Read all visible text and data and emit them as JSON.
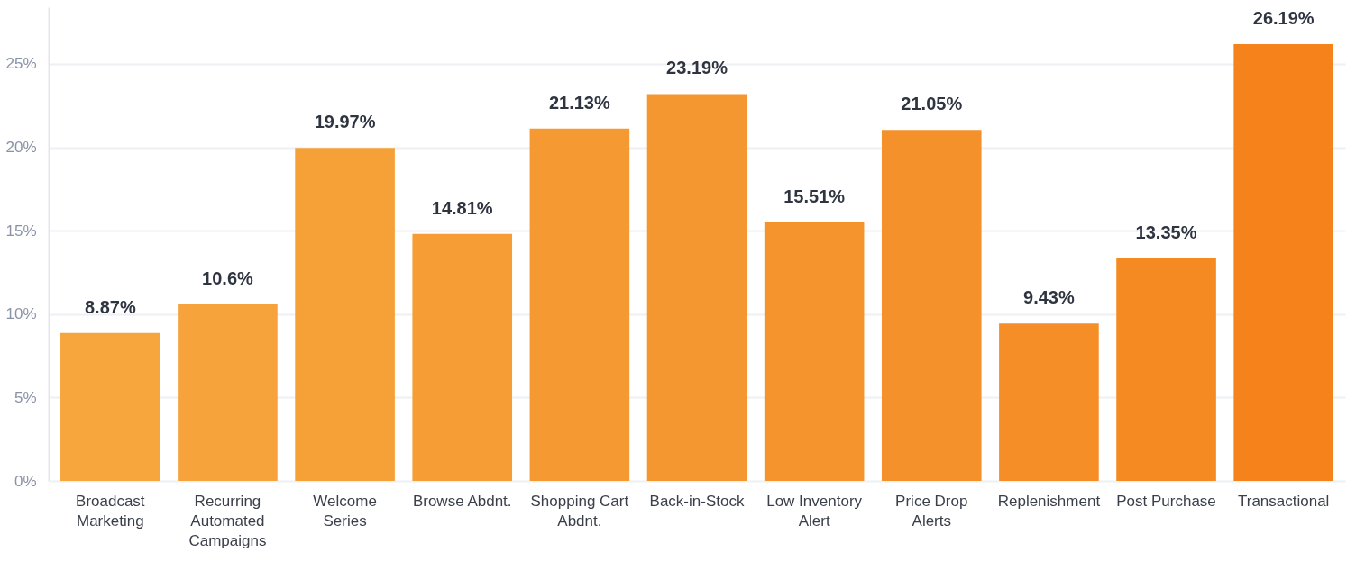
{
  "chart_data": {
    "type": "bar",
    "categories": [
      "Broadcast Marketing",
      "Recurring Automated Campaigns",
      "Welcome Series",
      "Browse Abdnt.",
      "Shopping Cart Abdnt.",
      "Back-in-Stock",
      "Low Inventory Alert",
      "Price Drop Alerts",
      "Replenishment",
      "Post Purchase",
      "Transactional"
    ],
    "values": [
      8.87,
      10.6,
      19.97,
      14.81,
      21.13,
      23.19,
      15.51,
      21.05,
      9.43,
      13.35,
      26.19
    ],
    "value_labels": [
      "8.87%",
      "10.6%",
      "19.97%",
      "14.81%",
      "21.13%",
      "23.19%",
      "15.51%",
      "21.05%",
      "9.43%",
      "13.35%",
      "26.19%"
    ],
    "colors": [
      "#f6a63d",
      "#f6a33b",
      "#f6a038",
      "#f69d35",
      "#f59a33",
      "#f59730",
      "#f5942d",
      "#f5912a",
      "#f58e27",
      "#f58a22",
      "#f5821b"
    ],
    "ylim": [
      0,
      28.4
    ],
    "yticks": [
      {
        "value": 0,
        "label": "0%"
      },
      {
        "value": 5,
        "label": "5%"
      },
      {
        "value": 10,
        "label": "10%"
      },
      {
        "value": 15,
        "label": "15%"
      },
      {
        "value": 20,
        "label": "20%"
      },
      {
        "value": 25,
        "label": "25%"
      }
    ],
    "grid": "y"
  }
}
